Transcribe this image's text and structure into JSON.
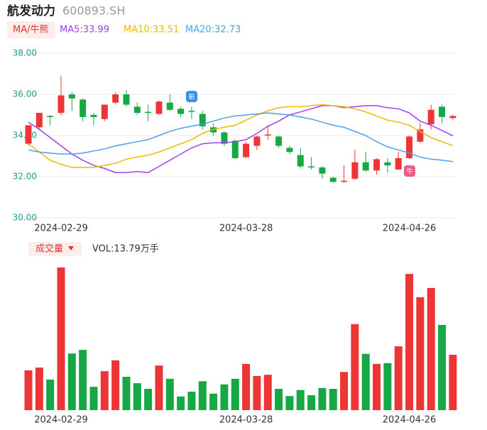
{
  "header": {
    "name": "航发动力",
    "code": "600893.SH"
  },
  "chart_data": [
    {
      "type": "candlestick",
      "legend_toggle": "MA/牛熊",
      "categories": [
        null,
        null,
        null,
        "2024-02-29",
        null,
        null,
        null,
        null,
        null,
        null,
        null,
        null,
        null,
        null,
        null,
        null,
        null,
        null,
        null,
        null,
        "2024-03-28",
        null,
        null,
        null,
        null,
        null,
        null,
        null,
        null,
        null,
        null,
        null,
        null,
        null,
        null,
        "2024-04-26",
        null,
        null,
        null,
        null
      ],
      "open": [
        33.6,
        34.4,
        34.95,
        35.1,
        36.0,
        35.75,
        35.0,
        34.8,
        35.6,
        36.0,
        35.4,
        35.15,
        35.05,
        35.6,
        35.3,
        35.2,
        35.05,
        34.4,
        34.15,
        33.75,
        32.95,
        33.5,
        34.0,
        33.95,
        33.4,
        33.05,
        32.5,
        32.45,
        31.95,
        31.75,
        31.9,
        32.7,
        32.3,
        32.7,
        32.35,
        32.9,
        33.7,
        34.55,
        35.4,
        34.85
      ],
      "high": [
        34.5,
        35.1,
        35.0,
        36.9,
        36.1,
        35.8,
        35.1,
        35.5,
        36.1,
        36.2,
        35.6,
        35.5,
        35.7,
        36.0,
        35.4,
        35.4,
        35.2,
        34.6,
        34.2,
        33.8,
        33.7,
        34.0,
        34.5,
        34.0,
        33.5,
        33.4,
        32.95,
        32.5,
        32.0,
        32.55,
        33.3,
        33.2,
        32.9,
        32.9,
        33.2,
        34.0,
        34.6,
        35.5,
        35.5,
        35.0
      ],
      "low": [
        33.5,
        34.3,
        34.5,
        35.0,
        35.2,
        34.7,
        34.5,
        34.7,
        35.5,
        35.4,
        35.0,
        34.7,
        35.0,
        35.2,
        34.9,
        34.8,
        34.3,
        34.0,
        33.5,
        32.85,
        32.9,
        33.3,
        33.8,
        33.4,
        33.1,
        32.4,
        32.35,
        31.9,
        31.7,
        31.7,
        31.85,
        32.25,
        32.1,
        32.2,
        32.3,
        32.85,
        33.65,
        34.3,
        34.6,
        34.75
      ],
      "close": [
        34.5,
        35.1,
        34.9,
        35.95,
        35.8,
        34.9,
        34.9,
        35.5,
        36.0,
        35.5,
        35.1,
        35.1,
        35.65,
        35.25,
        35.05,
        35.15,
        34.45,
        34.15,
        33.6,
        32.9,
        33.6,
        33.95,
        34.05,
        33.5,
        33.2,
        32.5,
        32.45,
        32.15,
        31.75,
        31.8,
        32.7,
        32.3,
        32.85,
        32.55,
        32.9,
        33.95,
        34.3,
        35.25,
        34.9,
        34.95
      ],
      "up_color": "#ee3535",
      "down_color": "#15a845",
      "series": [
        {
          "name": "MA5:33.99",
          "color": "#a040f0",
          "values": [
            34.65,
            34.3,
            33.9,
            33.5,
            33.1,
            32.8,
            32.55,
            32.4,
            32.2,
            32.2,
            32.25,
            32.2,
            32.5,
            32.8,
            33.1,
            33.4,
            33.6,
            33.65,
            33.65,
            33.7,
            33.8,
            34.1,
            34.45,
            34.7,
            35.0,
            35.15,
            35.3,
            35.45,
            35.45,
            35.35,
            35.4,
            35.45,
            35.45,
            35.35,
            35.3,
            35.1,
            34.7,
            34.5,
            34.25,
            33.99
          ]
        },
        {
          "name": "MA10:33.51",
          "color": "#f2b800",
          "values": [
            33.6,
            33.2,
            32.8,
            32.6,
            32.45,
            32.45,
            32.45,
            32.55,
            32.65,
            32.85,
            32.95,
            33.05,
            33.2,
            33.4,
            33.6,
            33.8,
            34.1,
            34.3,
            34.4,
            34.5,
            34.75,
            35.0,
            35.2,
            35.35,
            35.4,
            35.4,
            35.45,
            35.5,
            35.45,
            35.4,
            35.3,
            35.15,
            34.95,
            34.75,
            34.65,
            34.5,
            34.2,
            33.9,
            33.7,
            33.51
          ]
        },
        {
          "name": "MA20:32.73",
          "color": "#4a9ff0",
          "values": [
            33.3,
            33.2,
            33.15,
            33.1,
            33.1,
            33.15,
            33.25,
            33.35,
            33.5,
            33.6,
            33.7,
            33.8,
            34.0,
            34.2,
            34.35,
            34.45,
            34.55,
            34.7,
            34.85,
            34.95,
            35.0,
            35.05,
            35.1,
            35.05,
            35.0,
            34.9,
            34.8,
            34.65,
            34.5,
            34.4,
            34.2,
            34.0,
            33.7,
            33.45,
            33.3,
            33.15,
            32.95,
            32.85,
            32.8,
            32.73
          ]
        }
      ],
      "ylim": [
        30,
        38
      ],
      "yticks": [
        {
          "value": 30,
          "label": "30.00"
        },
        {
          "value": 32,
          "label": "32.00"
        },
        {
          "value": 34,
          "label": "34.00"
        },
        {
          "value": 36,
          "label": "36.00"
        },
        {
          "value": 38,
          "label": "38.00"
        }
      ],
      "grid": true,
      "annotations": [
        {
          "text": "新"
        },
        {
          "text": "牛"
        }
      ]
    },
    {
      "type": "bar",
      "title": "成交量",
      "legend": "VOL:13.79万手",
      "values": [
        9.9,
        10.6,
        7.6,
        35.5,
        14.1,
        15.0,
        5.8,
        9.7,
        12.4,
        8.3,
        6.7,
        5.3,
        11.1,
        7.8,
        3.4,
        4.6,
        7.2,
        4.1,
        6.4,
        7.8,
        11.5,
        8.5,
        8.8,
        5.3,
        3.5,
        5.0,
        3.7,
        5.5,
        5.3,
        9.5,
        21.4,
        14.0,
        11.5,
        11.7,
        15.9,
        33.9,
        28.1,
        30.4,
        21.2,
        13.79
      ]
    }
  ]
}
